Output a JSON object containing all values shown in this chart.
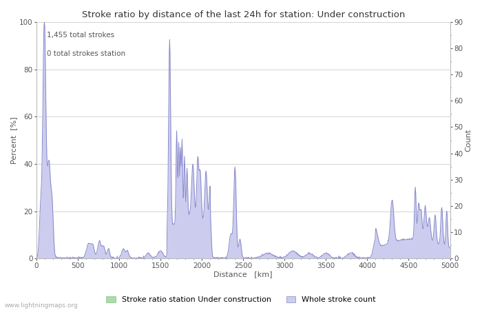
{
  "title": "Stroke ratio by distance of the last 24h for station: Under construction",
  "xlabel": "Distance   [km]",
  "ylabel_left": "Percent  [%]",
  "ylabel_right": "Count",
  "annotation_line1": "1,455 total strokes",
  "annotation_line2": "0 total strokes station",
  "watermark": "www.lightningmaps.org",
  "legend_station": "Stroke ratio station Under construction",
  "legend_whole": "Whole stroke count",
  "xlim": [
    0,
    5000
  ],
  "ylim_left": [
    0,
    100
  ],
  "ylim_right": [
    0,
    90
  ],
  "yticks_left": [
    0,
    20,
    40,
    60,
    80,
    100
  ],
  "yticks_right": [
    0,
    10,
    20,
    30,
    40,
    50,
    60,
    70,
    80,
    90
  ],
  "xticks": [
    0,
    500,
    1000,
    1500,
    2000,
    2500,
    3000,
    3500,
    4000,
    4500,
    5000
  ],
  "line_color": "#8888cc",
  "fill_color": "#ccccee",
  "station_fill_color": "#aaddaa",
  "station_line_color": "#88bb88",
  "background_color": "#ffffff",
  "grid_color": "#cccccc",
  "title_fontsize": 9.5,
  "label_fontsize": 8,
  "tick_fontsize": 7.5,
  "annotation_fontsize": 7.5
}
